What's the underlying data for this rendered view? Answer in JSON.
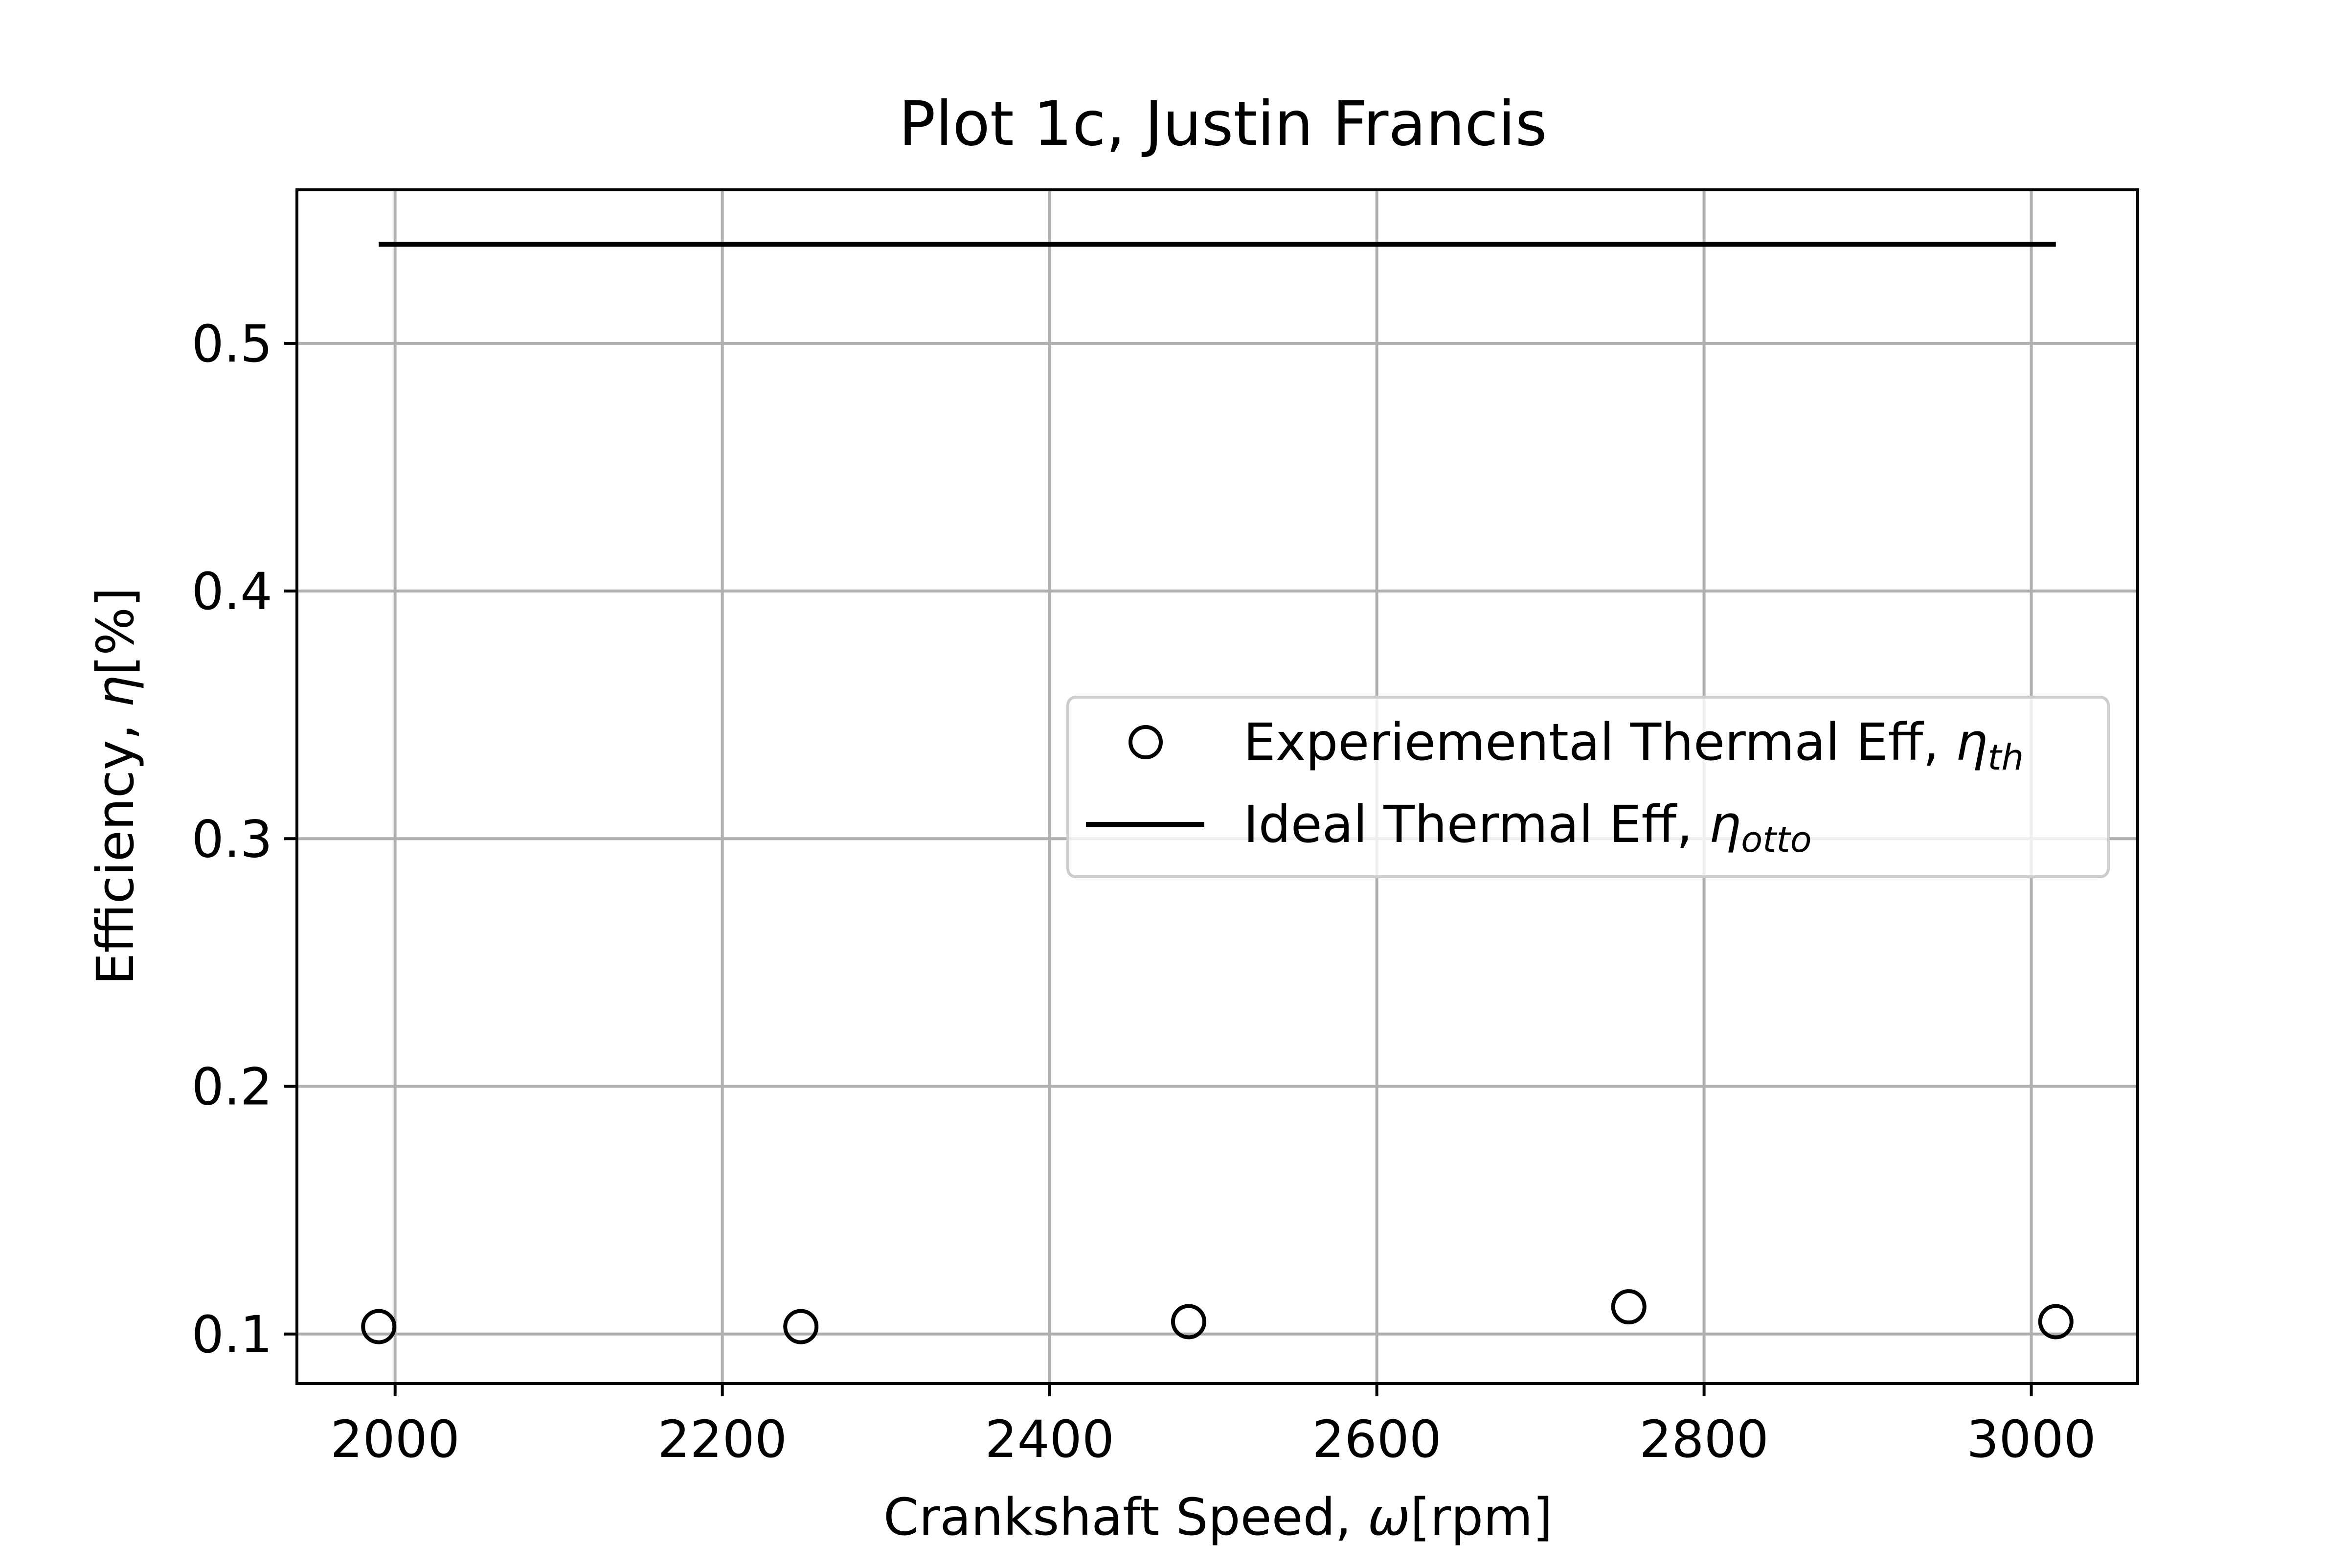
{
  "chart_data": {
    "type": "scatter",
    "title": "Plot 1c, Justin Francis",
    "xlabel": {
      "text": "Crankshaft Speed, ",
      "symbol": "ω",
      "unit": "[rpm]"
    },
    "ylabel": {
      "text": "Efficiency, ",
      "symbol": "η",
      "unit": "[%]"
    },
    "xlim": [
      1940,
      3065
    ],
    "ylim": [
      0.08,
      0.562
    ],
    "x_ticks": [
      2000,
      2200,
      2400,
      2600,
      2800,
      3000
    ],
    "y_ticks": [
      0.1,
      0.2,
      0.3,
      0.4,
      0.5
    ],
    "grid": true,
    "legend_position": "center-right",
    "series": [
      {
        "name": "Experiemental Thermal Eff, ",
        "symbol": "η",
        "subscript": "th",
        "marker": "open-circle",
        "color": "#000000",
        "x": [
          1990,
          2248,
          2485,
          2754,
          3015
        ],
        "y": [
          0.103,
          0.103,
          0.105,
          0.111,
          0.105
        ]
      },
      {
        "name": "Ideal Thermal Eff, ",
        "symbol": "η",
        "subscript": "otto",
        "marker": "line",
        "color": "#000000",
        "x": [
          1990,
          3015
        ],
        "y": [
          0.54,
          0.54
        ]
      }
    ]
  }
}
